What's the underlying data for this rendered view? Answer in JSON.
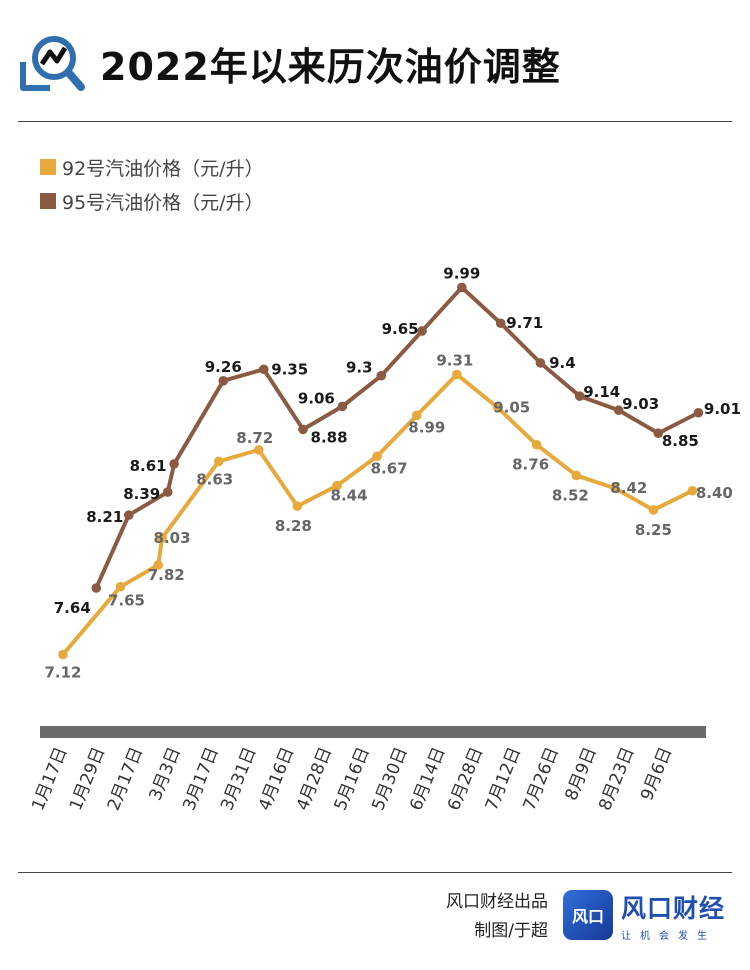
{
  "header": {
    "title": "2022年以来历次油价调整",
    "logo_icon": "magnifier-chart-icon"
  },
  "colors": {
    "series92": "#E8A93C",
    "series95": "#8A5A43",
    "axis_band": "#6b6b6b"
  },
  "chart_data": {
    "type": "line",
    "title": "2022年以来历次油价调整",
    "categories": [
      "1月17日",
      "1月29日",
      "2月17日",
      "3月3日",
      "3月17日",
      "3月31日",
      "4月16日",
      "4月28日",
      "5月16日",
      "5月30日",
      "6月14日",
      "6月28日",
      "7月12日",
      "7月26日",
      "8月9日",
      "8月23日",
      "9月6日"
    ],
    "series": [
      {
        "name": "92号汽油价格（元/升）",
        "points": [
          {
            "x": 0,
            "y": 7.12,
            "label": "7.12"
          },
          {
            "x": 1.52,
            "y": 7.65,
            "label": "7.65"
          },
          {
            "x": 2.52,
            "y": 7.82,
            "label": "7.82"
          },
          {
            "x": 2.62,
            "y": 8.03,
            "label": "8.03"
          },
          {
            "x": 4.12,
            "y": 8.63,
            "label": "8.63"
          },
          {
            "x": 5.18,
            "y": 8.72,
            "label": "8.72"
          },
          {
            "x": 6.2,
            "y": 8.28,
            "label": "8.28"
          },
          {
            "x": 7.25,
            "y": 8.44,
            "label": "8.44"
          },
          {
            "x": 8.31,
            "y": 8.67,
            "label": "8.67"
          },
          {
            "x": 9.36,
            "y": 8.99,
            "label": "8.99"
          },
          {
            "x": 10.42,
            "y": 9.31,
            "label": "9.31"
          },
          {
            "x": 11.5,
            "y": 9.05,
            "label": "9.05"
          },
          {
            "x": 12.53,
            "y": 8.76,
            "label": "8.76"
          },
          {
            "x": 13.58,
            "y": 8.52,
            "label": "8.52"
          },
          {
            "x": 14.6,
            "y": 8.42,
            "label": "8.42"
          },
          {
            "x": 15.62,
            "y": 8.25,
            "label": "8.25"
          },
          {
            "x": 16.65,
            "y": 8.4,
            "label": "8.40"
          }
        ]
      },
      {
        "name": "95号汽油价格（元/升）",
        "points": [
          {
            "x": 0.88,
            "y": 7.64,
            "label": "7.64"
          },
          {
            "x": 1.74,
            "y": 8.21,
            "label": "8.21"
          },
          {
            "x": 2.77,
            "y": 8.39,
            "label": "8.39"
          },
          {
            "x": 2.94,
            "y": 8.61,
            "label": "8.61"
          },
          {
            "x": 4.24,
            "y": 9.26,
            "label": "9.26"
          },
          {
            "x": 5.31,
            "y": 9.35,
            "label": "9.35"
          },
          {
            "x": 6.35,
            "y": 8.88,
            "label": "8.88"
          },
          {
            "x": 7.39,
            "y": 9.06,
            "label": "9.06"
          },
          {
            "x": 8.42,
            "y": 9.3,
            "label": "9.3"
          },
          {
            "x": 9.5,
            "y": 9.65,
            "label": "9.65"
          },
          {
            "x": 10.55,
            "y": 9.99,
            "label": "9.99"
          },
          {
            "x": 11.58,
            "y": 9.71,
            "label": "9.71"
          },
          {
            "x": 12.63,
            "y": 9.4,
            "label": "9.4"
          },
          {
            "x": 13.67,
            "y": 9.14,
            "label": "9.14"
          },
          {
            "x": 14.7,
            "y": 9.03,
            "label": "9.03"
          },
          {
            "x": 15.75,
            "y": 8.85,
            "label": "8.85"
          },
          {
            "x": 16.81,
            "y": 9.01,
            "label": "9.01"
          }
        ]
      }
    ],
    "xlabel": "",
    "ylabel": "",
    "ylim": [
      6.6,
      10.4
    ],
    "grid": false,
    "legend_position": "top-left",
    "data_labels": true
  },
  "footer": {
    "credit": "风口财经出品",
    "author": "制图/于超"
  },
  "brand": {
    "badge": "风口",
    "name": "风口财经",
    "slogan": "让机会发生"
  }
}
